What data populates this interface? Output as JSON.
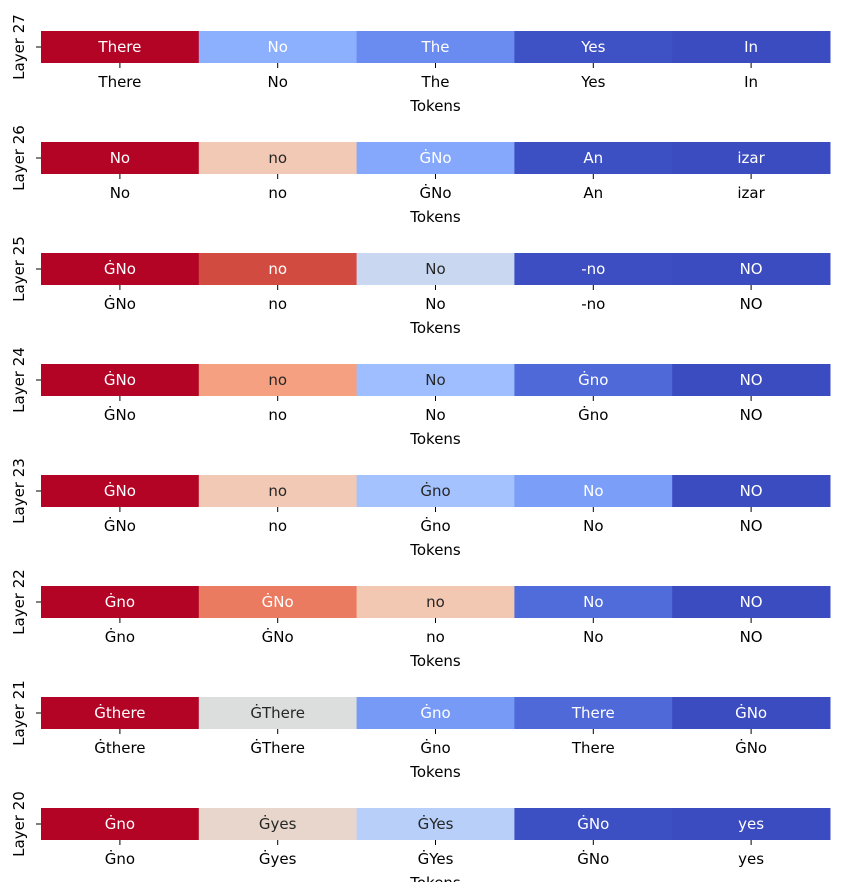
{
  "chart_data": [
    {
      "type": "heatmap",
      "ylabel": "Layer 27",
      "xlabel": "Tokens",
      "tokens": [
        "There",
        "No",
        "The",
        "Yes",
        "In"
      ],
      "colors": [
        "#b40426",
        "#8caffe",
        "#6a8bef",
        "#3e51c5",
        "#3b4cc0"
      ],
      "text_colors": [
        "#ffffff",
        "#ffffff",
        "#ffffff",
        "#ffffff",
        "#ffffff"
      ]
    },
    {
      "type": "heatmap",
      "ylabel": "Layer 26",
      "xlabel": "Tokens",
      "tokens": [
        "No",
        "no",
        "ĠNo",
        "An",
        "izar"
      ],
      "colors": [
        "#b40426",
        "#f2c9b4",
        "#85a8fc",
        "#3d50c3",
        "#3b4cc0"
      ],
      "text_colors": [
        "#ffffff",
        "#262626",
        "#ffffff",
        "#ffffff",
        "#ffffff"
      ]
    },
    {
      "type": "heatmap",
      "ylabel": "Layer 25",
      "xlabel": "Tokens",
      "tokens": [
        "ĠNo",
        "no",
        "No",
        "-no",
        "NO"
      ],
      "colors": [
        "#b40426",
        "#d24b40",
        "#c9d7f0",
        "#3c4ec2",
        "#3b4cc0"
      ],
      "text_colors": [
        "#ffffff",
        "#ffffff",
        "#262626",
        "#ffffff",
        "#ffffff"
      ]
    },
    {
      "type": "heatmap",
      "ylabel": "Layer 24",
      "xlabel": "Tokens",
      "tokens": [
        "ĠNo",
        "no",
        "No",
        "Ġno",
        "NO"
      ],
      "colors": [
        "#b40426",
        "#f5a081",
        "#9ebeff",
        "#4f69d9",
        "#3b4cc0"
      ],
      "text_colors": [
        "#ffffff",
        "#262626",
        "#262626",
        "#ffffff",
        "#ffffff"
      ]
    },
    {
      "type": "heatmap",
      "ylabel": "Layer 23",
      "xlabel": "Tokens",
      "tokens": [
        "ĠNo",
        "no",
        "Ġno",
        "No",
        "NO"
      ],
      "colors": [
        "#b40426",
        "#f2c9b4",
        "#a3c2fe",
        "#7b9ff9",
        "#3b4cc0"
      ],
      "text_colors": [
        "#ffffff",
        "#262626",
        "#262626",
        "#ffffff",
        "#ffffff"
      ]
    },
    {
      "type": "heatmap",
      "ylabel": "Layer 22",
      "xlabel": "Tokens",
      "tokens": [
        "Ġno",
        "ĠNo",
        "no",
        "No",
        "NO"
      ],
      "colors": [
        "#b40426",
        "#ea7b60",
        "#f3c8b2",
        "#506bda",
        "#3b4cc0"
      ],
      "text_colors": [
        "#ffffff",
        "#ffffff",
        "#262626",
        "#ffffff",
        "#ffffff"
      ]
    },
    {
      "type": "heatmap",
      "ylabel": "Layer 21",
      "xlabel": "Tokens",
      "tokens": [
        "Ġthere",
        "ĠThere",
        "Ġno",
        "There",
        "ĠNo"
      ],
      "colors": [
        "#b40426",
        "#dcdddd",
        "#779af7",
        "#4f69d9",
        "#3b4cc0"
      ],
      "text_colors": [
        "#ffffff",
        "#262626",
        "#ffffff",
        "#ffffff",
        "#ffffff"
      ]
    },
    {
      "type": "heatmap",
      "ylabel": "Layer 20",
      "xlabel": "Tokens",
      "tokens": [
        "Ġno",
        "Ġyes",
        "ĠYes",
        "ĠNo",
        "yes"
      ],
      "colors": [
        "#b40426",
        "#e8d6cc",
        "#b7cff9",
        "#3d50c3",
        "#3b4cc0"
      ],
      "text_colors": [
        "#ffffff",
        "#262626",
        "#262626",
        "#ffffff",
        "#ffffff"
      ]
    }
  ]
}
